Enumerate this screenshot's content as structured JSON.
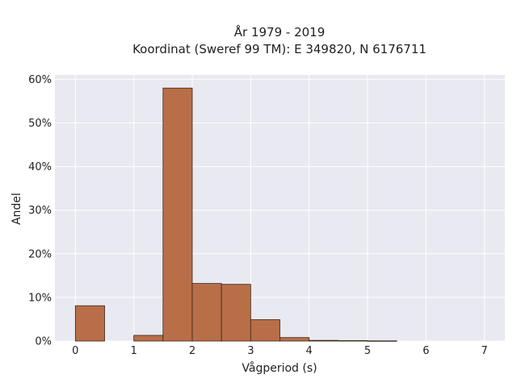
{
  "chart_data": {
    "type": "bar",
    "title_line1": "År 1979 - 2019",
    "title_line2": "Koordinat (Sweref 99 TM): E 349820, N 6176711",
    "xlabel": "Vågperiod (s)",
    "ylabel": "Andel",
    "xlim": [
      -0.35,
      7.35
    ],
    "ylim": [
      0,
      0.61
    ],
    "x_ticks": [
      0,
      1,
      2,
      3,
      4,
      5,
      6,
      7
    ],
    "y_ticks": [
      0,
      0.1,
      0.2,
      0.3,
      0.4,
      0.5,
      0.6
    ],
    "y_tick_labels": [
      "0%",
      "10%",
      "20%",
      "30%",
      "40%",
      "50%",
      "60%"
    ],
    "bin_width": 0.5,
    "bins": [
      {
        "x0": 0.0,
        "value": 0.081
      },
      {
        "x0": 0.5,
        "value": 0.0
      },
      {
        "x0": 1.0,
        "value": 0.013
      },
      {
        "x0": 1.5,
        "value": 0.58
      },
      {
        "x0": 2.0,
        "value": 0.132
      },
      {
        "x0": 2.5,
        "value": 0.13
      },
      {
        "x0": 3.0,
        "value": 0.049
      },
      {
        "x0": 3.5,
        "value": 0.008
      },
      {
        "x0": 4.0,
        "value": 0.0015
      },
      {
        "x0": 4.5,
        "value": 0.001
      },
      {
        "x0": 5.0,
        "value": 0.0005
      }
    ],
    "bar_color": "#b86f48",
    "bar_edge_color": "#3a2418",
    "plot_bg": "#e9e9f1",
    "grid": true
  }
}
